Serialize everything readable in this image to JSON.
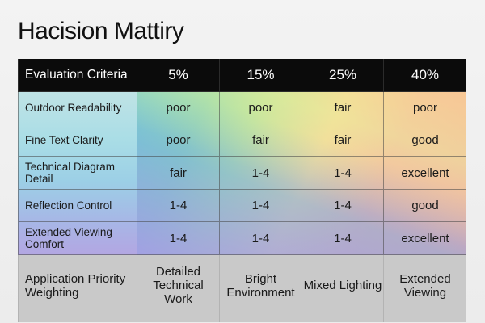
{
  "title": "Hacision Mattiry",
  "header": {
    "criteria_label": "Evaluation Criteria",
    "columns": [
      "5%",
      "15%",
      "25%",
      "40%"
    ]
  },
  "rows": [
    {
      "label": "Outdoor Readability",
      "values": [
        "poor",
        "poor",
        "fair",
        "poor"
      ]
    },
    {
      "label": "Fine Text Clarity",
      "values": [
        "poor",
        "fair",
        "fair",
        "good"
      ]
    },
    {
      "label": "Technical Diagram Detail",
      "values": [
        "fair",
        "1-4",
        "1-4",
        "excellent"
      ]
    },
    {
      "label": "Reflection Control",
      "values": [
        "1-4",
        "1-4",
        "1-4",
        "good"
      ]
    },
    {
      "label": "Extended Viewing Comfort",
      "values": [
        "1-4",
        "1-4",
        "1-4",
        "excellent"
      ]
    }
  ],
  "footer": {
    "label": "Application Priority Weighting",
    "values": [
      "Detailed Technical Work",
      "Bright Environment",
      "Mixed Lighting",
      "Extended Viewing"
    ]
  },
  "colors": {
    "header_bg": "#0b0b0b",
    "footer_bg": "#c9c9c9"
  }
}
